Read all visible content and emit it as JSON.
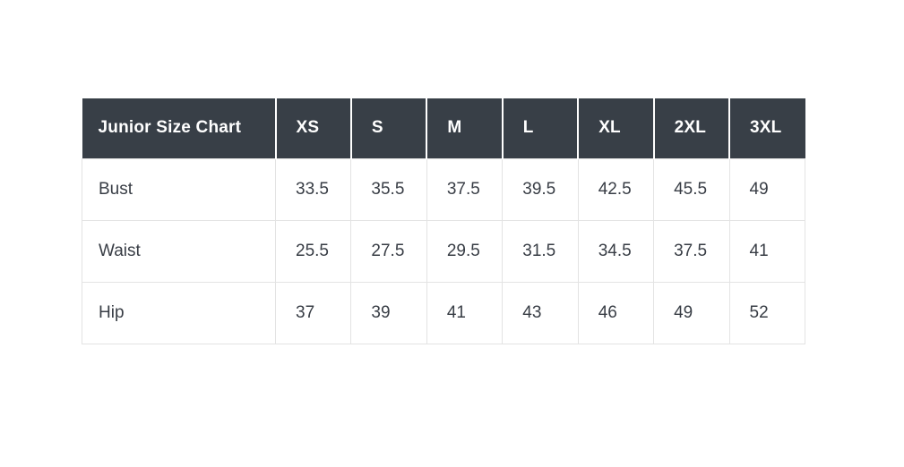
{
  "chart_data": {
    "type": "table",
    "title": "Junior Size Chart",
    "columns": [
      "XS",
      "S",
      "M",
      "L",
      "XL",
      "2XL",
      "3XL"
    ],
    "rows": [
      {
        "label": "Bust",
        "values": [
          33.5,
          35.5,
          37.5,
          39.5,
          42.5,
          45.5,
          49
        ]
      },
      {
        "label": "Waist",
        "values": [
          25.5,
          27.5,
          29.5,
          31.5,
          34.5,
          37.5,
          41
        ]
      },
      {
        "label": "Hip",
        "values": [
          37,
          39,
          41,
          43,
          46,
          49,
          52
        ]
      }
    ],
    "layout_hints": {
      "header_position": "top-row",
      "first_column_is_row_labels": true,
      "grid": true
    }
  },
  "colors": {
    "header_bg": "#383f47",
    "header_text": "#ffffff",
    "body_text": "#383d45",
    "border": "#e3e3e3",
    "page_bg": "#ffffff"
  }
}
